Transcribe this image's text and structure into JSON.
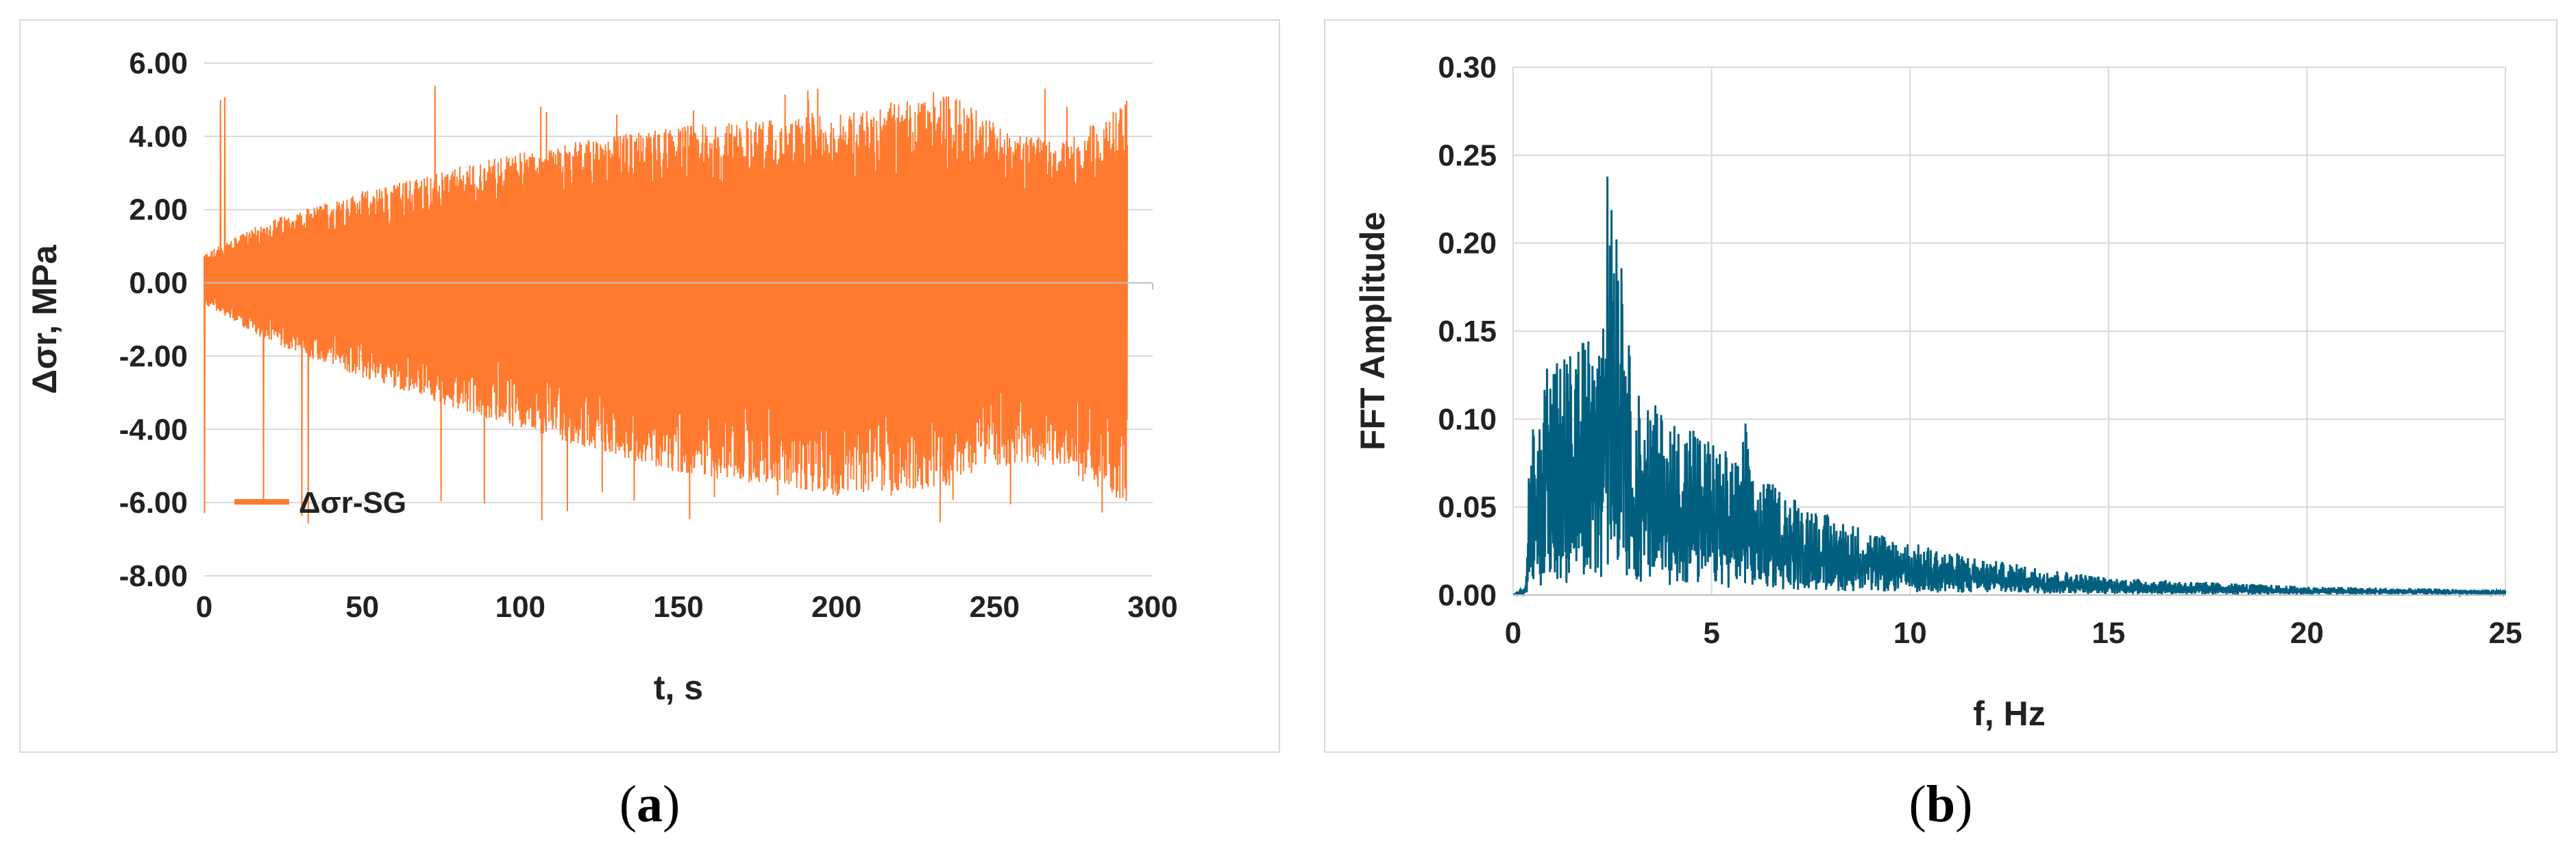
{
  "panels": {
    "a": {
      "caption_open": "(",
      "caption_letter": "a",
      "caption_close": ")"
    },
    "b": {
      "caption_open": "(",
      "caption_letter": "b",
      "caption_close": ")"
    }
  },
  "chart_data": [
    {
      "type": "line",
      "xlabel": "t, s",
      "ylabel": "Δσr, MPa",
      "xlim": [
        0,
        300
      ],
      "ylim": [
        -8,
        6
      ],
      "x_ticks": [
        "0",
        "50",
        "100",
        "150",
        "200",
        "250",
        "300"
      ],
      "y_ticks": [
        "6.00",
        "4.00",
        "2.00",
        "0.00",
        "-2.00",
        "-4.00",
        "-6.00",
        "-8.00"
      ],
      "grid": "horizontal",
      "legend_position": "lower-left",
      "series": [
        {
          "name": "Δσr-SG",
          "color": "#FF7A2F",
          "x_range": [
            0,
            292
          ],
          "envelope": {
            "t": [
              0,
              20,
              50,
              100,
              150,
              200,
              235,
              250,
              270,
              285,
              292
            ],
            "upper": [
              0.8,
              1.7,
              2.5,
              3.6,
              4.3,
              4.6,
              5.3,
              4.4,
              3.8,
              4.5,
              5.1
            ],
            "lower": [
              -0.6,
              -1.6,
              -2.6,
              -4.0,
              -5.2,
              -5.8,
              -5.6,
              -5.0,
              -5.0,
              -5.8,
              -6.1
            ]
          },
          "y_min": -6.6,
          "y_max": 5.4
        }
      ]
    },
    {
      "type": "line",
      "xlabel": "f, Hz",
      "ylabel": "FFT Amplitude",
      "xlim": [
        0,
        25
      ],
      "ylim": [
        0,
        0.3
      ],
      "x_ticks": [
        "0",
        "5",
        "10",
        "15",
        "20",
        "25"
      ],
      "y_ticks": [
        "0.30",
        "0.25",
        "0.20",
        "0.15",
        "0.10",
        "0.05",
        "0.00"
      ],
      "grid": "both",
      "series": [
        {
          "color": "#005F7F",
          "peaks": [
            {
              "f": 0.45,
              "amp": 0.1
            },
            {
              "f": 0.85,
              "amp": 0.15
            },
            {
              "f": 1.6,
              "amp": 0.145
            },
            {
              "f": 2.05,
              "amp": 0.185
            },
            {
              "f": 2.45,
              "amp": 0.272
            },
            {
              "f": 2.75,
              "amp": 0.222
            },
            {
              "f": 4.5,
              "amp": 0.11
            },
            {
              "f": 5.85,
              "amp": 0.115
            }
          ],
          "envelope": {
            "f": [
              0,
              0.3,
              0.5,
              1,
              2,
              2.5,
              3,
              4,
              5,
              6,
              8,
              10,
              12,
              15,
              20,
              25
            ],
            "amp": [
              0,
              0.005,
              0.09,
              0.13,
              0.15,
              0.26,
              0.12,
              0.1,
              0.09,
              0.07,
              0.045,
              0.03,
              0.02,
              0.01,
              0.005,
              0.003
            ]
          }
        }
      ]
    }
  ]
}
